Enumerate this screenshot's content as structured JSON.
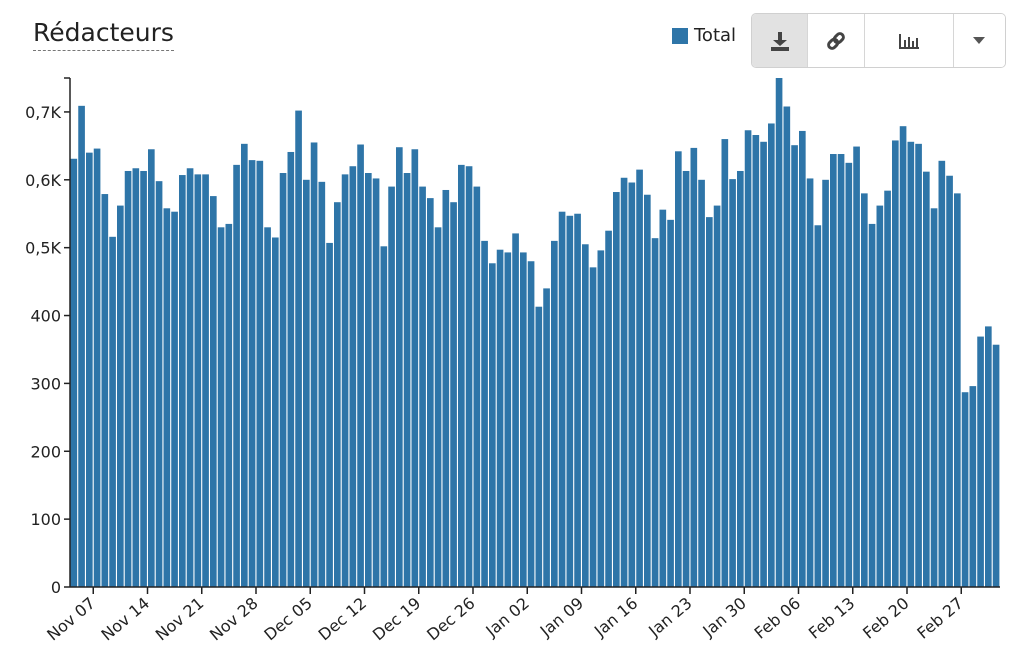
{
  "toolbar": {
    "buttons": [
      {
        "name": "download-button",
        "icon": "download-icon"
      },
      {
        "name": "link-button",
        "icon": "link-icon"
      },
      {
        "name": "chart-type-button",
        "icon": "bar-chart-icon"
      },
      {
        "name": "dropdown-button",
        "icon": "caret-down-icon"
      }
    ]
  },
  "chart_data": {
    "type": "bar",
    "title": "Rédacteurs",
    "xlabel": "",
    "ylabel": "",
    "ylim": [
      0,
      750
    ],
    "yticks": [
      0,
      100,
      200,
      300,
      400,
      500,
      600,
      700
    ],
    "ytick_labels": [
      "0",
      "100",
      "200",
      "300",
      "400",
      "0,5K",
      "0,6K",
      "0,7K"
    ],
    "xticks": [
      "Nov 07",
      "Nov 14",
      "Nov 21",
      "Nov 28",
      "Dec 05",
      "Dec 12",
      "Dec 19",
      "Dec 26",
      "Jan 02",
      "Jan 09",
      "Jan 16",
      "Jan 23",
      "Jan 30",
      "Feb 06",
      "Feb 13",
      "Feb 20",
      "Feb 27"
    ],
    "start_date": "Nov 04",
    "grid": false,
    "legend": "top-right",
    "color": "#2e75a8",
    "series": [
      {
        "name": "Total",
        "values": [
          631,
          709,
          640,
          646,
          579,
          516,
          562,
          613,
          617,
          613,
          645,
          598,
          558,
          553,
          607,
          617,
          608,
          608,
          576,
          530,
          535,
          622,
          653,
          629,
          628,
          530,
          515,
          610,
          641,
          702,
          600,
          655,
          597,
          507,
          567,
          608,
          620,
          652,
          610,
          602,
          502,
          590,
          648,
          610,
          645,
          590,
          573,
          530,
          585,
          567,
          622,
          620,
          590,
          510,
          477,
          497,
          493,
          521,
          493,
          480,
          413,
          440,
          510,
          553,
          547,
          550,
          505,
          471,
          496,
          525,
          582,
          603,
          596,
          615,
          578,
          514,
          556,
          541,
          642,
          613,
          647,
          600,
          545,
          562,
          660,
          601,
          613,
          673,
          666,
          656,
          683,
          750,
          708,
          651,
          672,
          602,
          533,
          600,
          638,
          638,
          625,
          649,
          580,
          535,
          562,
          584,
          658,
          679,
          656,
          653,
          612,
          558,
          628,
          606,
          580,
          287,
          296,
          369,
          384,
          357
        ]
      }
    ]
  }
}
